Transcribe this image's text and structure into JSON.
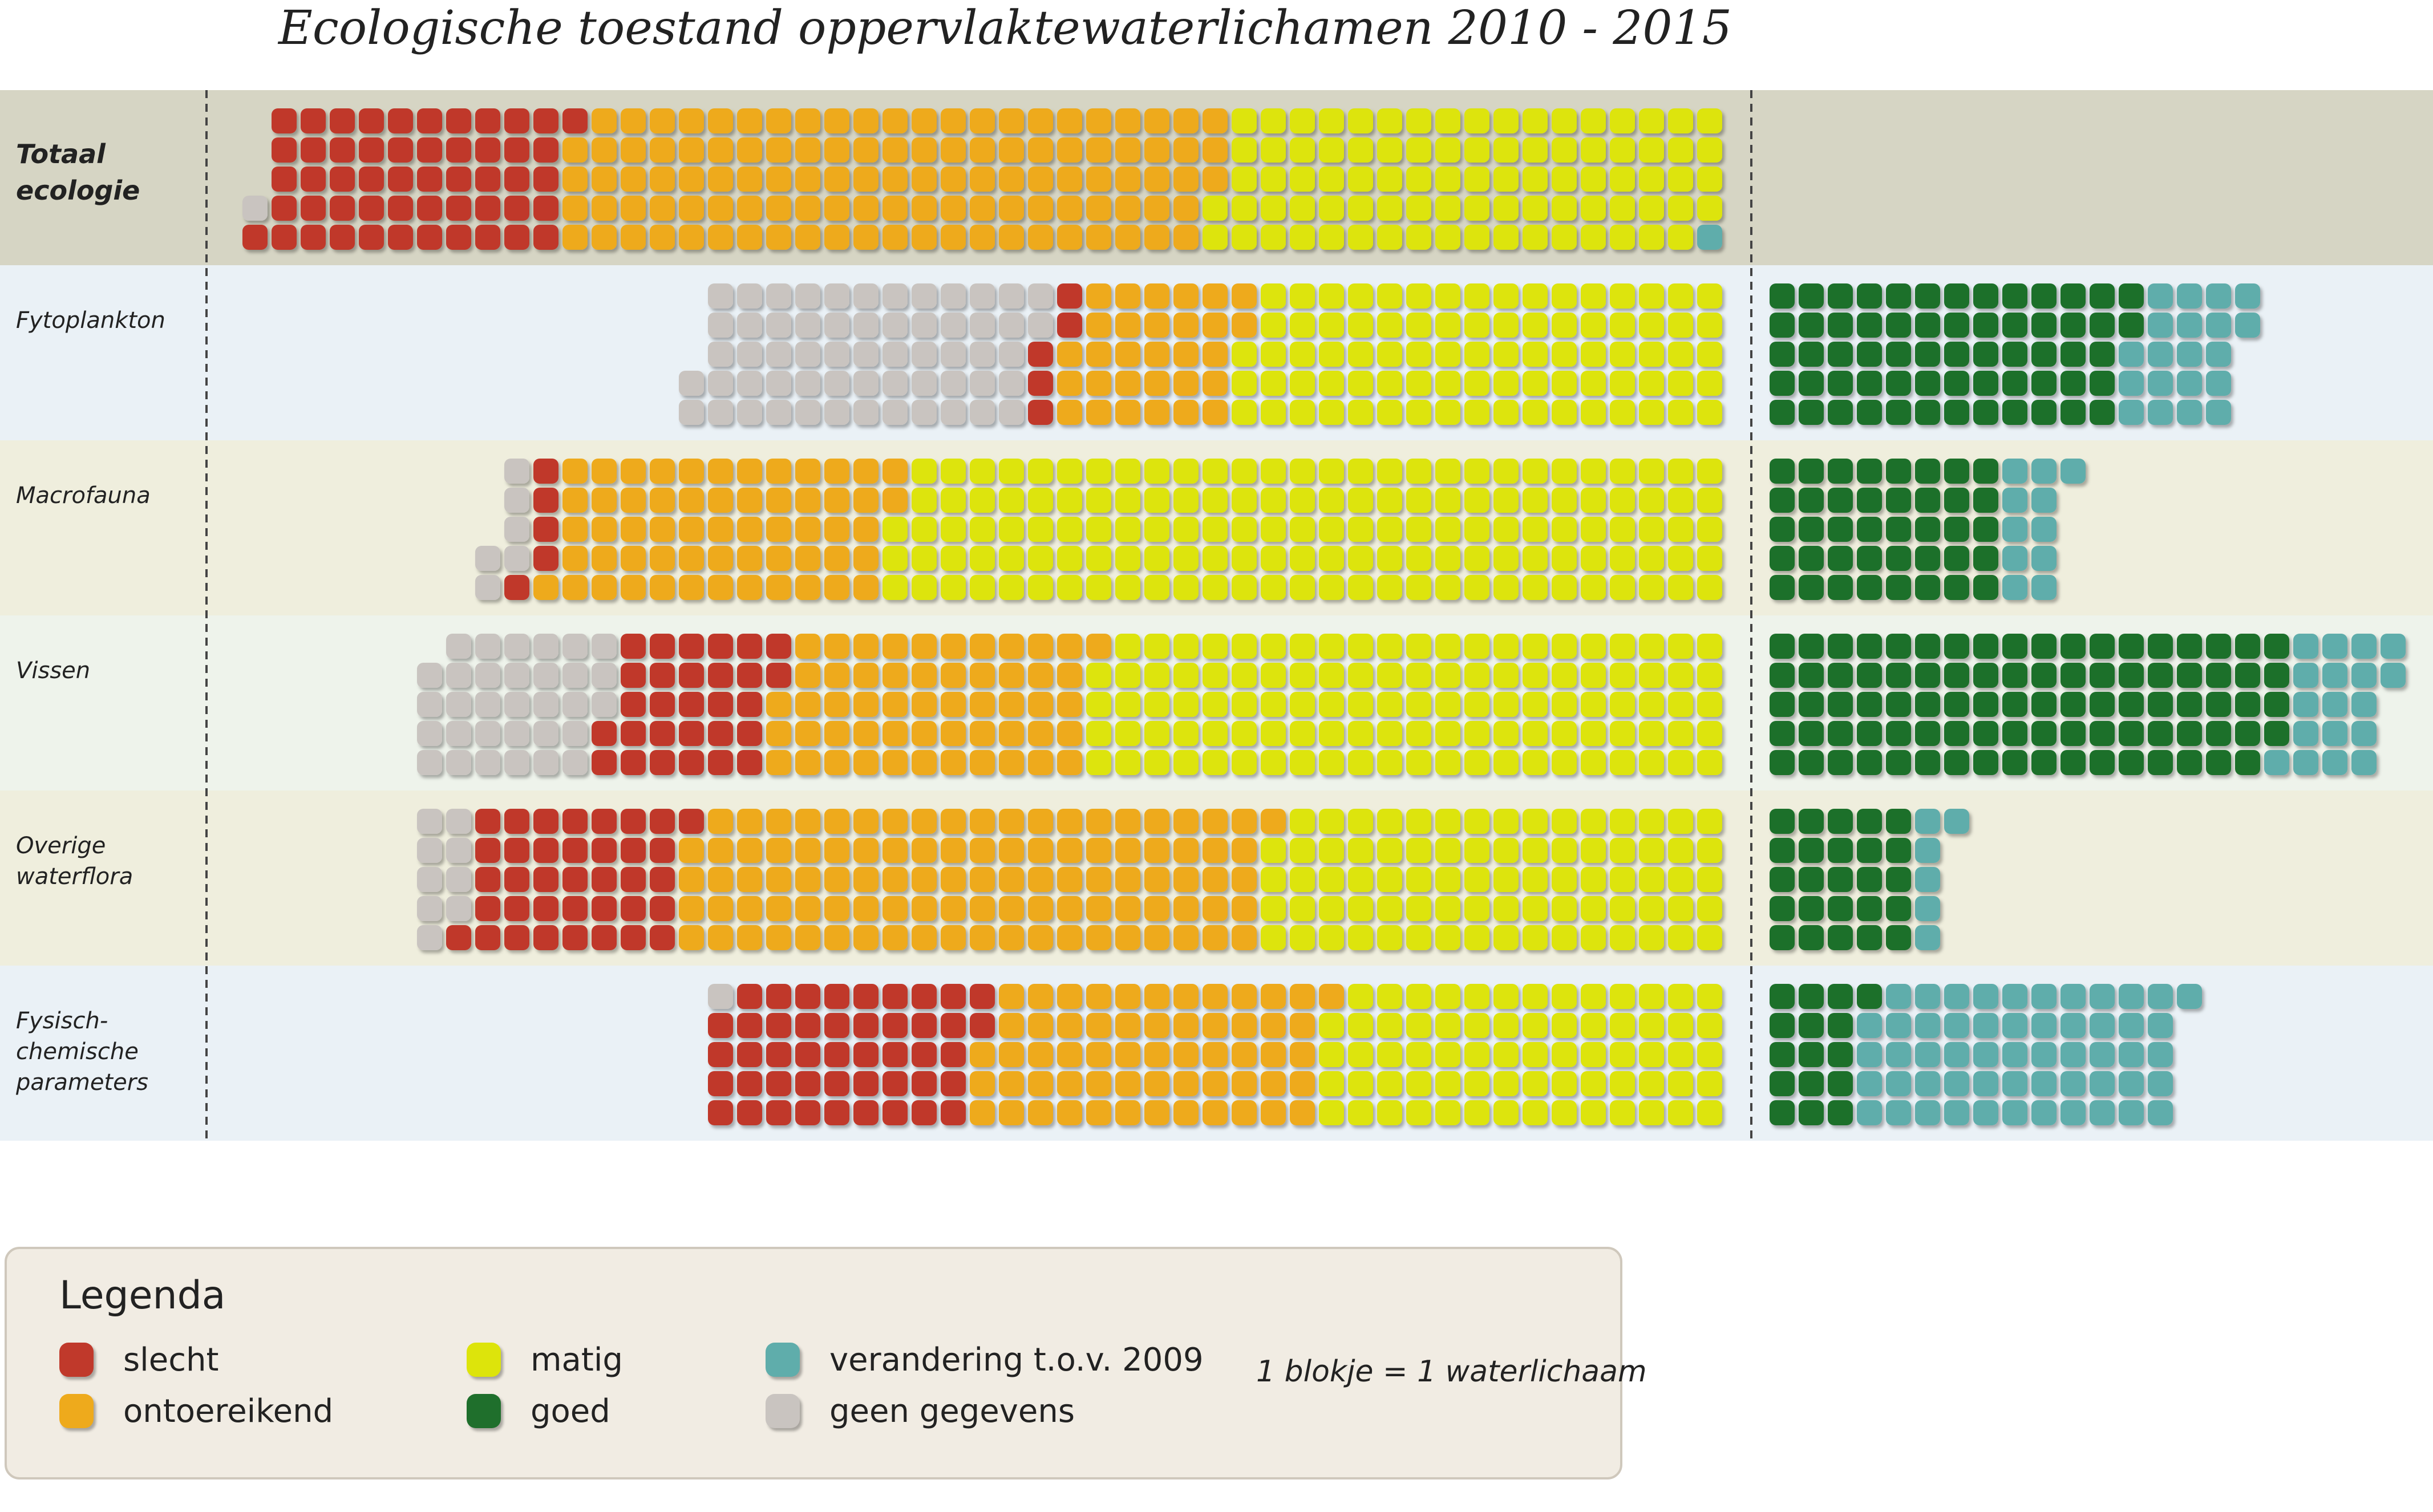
{
  "chart_data": {
    "type": "waffle",
    "title": "Ecologische toestand oppervlaktewaterlichamen 2010 - 2015",
    "unit_note": "1 blokje = 1 waterlichaam",
    "categories": [
      "slecht",
      "ontoereikend",
      "matig",
      "goed",
      "verandering t.o.v. 2009",
      "geen gegevens"
    ],
    "colors": {
      "slecht": "#c0392b",
      "ontoereikend": "#eeaa1c",
      "matig": "#dde40b",
      "goed": "#1f6f2c",
      "verandering": "#5fadab",
      "geen_gegevens": "#c9c4c0"
    },
    "rows": [
      {
        "label": "Totaal ecologie",
        "bold": true,
        "geen": 1,
        "slecht": 52,
        "ontoereikend": 112,
        "matig": 86,
        "verandering": 1,
        "goed": 0
      },
      {
        "label": "Fytoplankton",
        "geen": 59,
        "slecht": 5,
        "ontoereikend": 30,
        "matig": 83,
        "goed": 62,
        "verandering": 20
      },
      {
        "label": "Macrofauna",
        "geen": 6,
        "slecht": 5,
        "ontoereikend": 58,
        "matig": 143,
        "goed": 40,
        "verandering": 11
      },
      {
        "label": "Vissen",
        "geen": 32,
        "slecht": 29,
        "ontoereikend": 54,
        "matig": 109,
        "goed": 89,
        "verandering": 18
      },
      {
        "label": "Overige waterflora",
        "geen": 9,
        "slecht": 37,
        "ontoereikend": 100,
        "matig": 79,
        "goed": 25,
        "verandering": 6
      },
      {
        "label": "Fysisch-chemische parameters",
        "geen": 1,
        "slecht": 46,
        "ontoereikend": 59,
        "matig": 69,
        "goed": 16,
        "verandering": 55
      }
    ]
  },
  "legend": {
    "title": "Legenda",
    "items": [
      {
        "key": "slecht",
        "label": "slecht"
      },
      {
        "key": "ontoereikend",
        "label": "ontoereikend"
      },
      {
        "key": "matig",
        "label": "matig"
      },
      {
        "key": "goed",
        "label": "goed"
      },
      {
        "key": "verandering",
        "label": "verandering t.o.v. 2009"
      },
      {
        "key": "geen_gegevens",
        "label": "geen gegevens"
      }
    ]
  }
}
